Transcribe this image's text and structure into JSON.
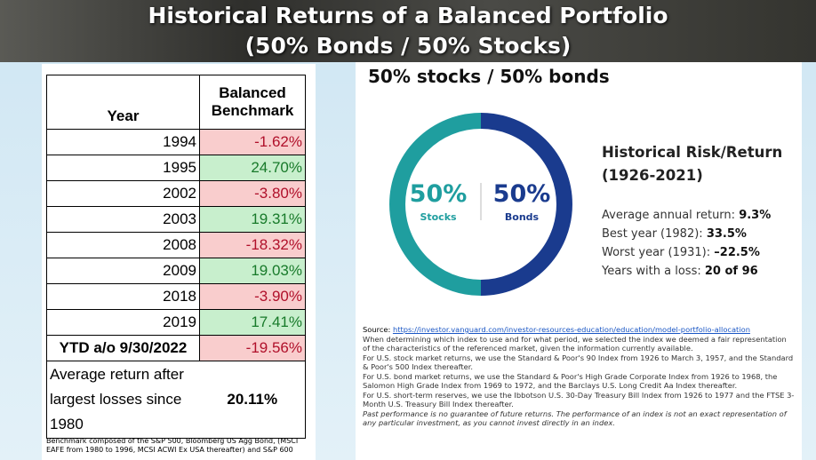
{
  "header": {
    "title_line1": "Historical Returns of a Balanced Portfolio",
    "title_line2": "(50% Bonds / 50% Stocks)"
  },
  "table": {
    "header": [
      "Year",
      "Balanced Benchmark"
    ],
    "rows": [
      [
        "1994",
        "-1.62%"
      ],
      [
        "1995",
        "24.70%"
      ],
      [
        "2002",
        "-3.80%"
      ],
      [
        "2003",
        "19.31%"
      ],
      [
        "2008",
        "-18.32%"
      ],
      [
        "2009",
        "19.03%"
      ],
      [
        "2018",
        "-3.90%"
      ],
      [
        "2019",
        "17.41%"
      ],
      [
        "YTD a/o 9/30/2022",
        "-19.56%"
      ]
    ],
    "summary": [
      "Average return after largest losses since 1980",
      "20.11%"
    ],
    "footnote": "Benchmark composed of  the S&P 500, Bloomberg US Agg Bond, (MSCI EAFE from 1980 to 1996, MCSI ACWI Ex USA thereafter) and S&P 600"
  },
  "allocation": {
    "title": "50% stocks / 50% bonds",
    "segments": [
      {
        "name": "Stocks",
        "value": 50,
        "label": "50%",
        "color": "#1f9e9f"
      },
      {
        "name": "Bonds",
        "value": 50,
        "label": "50%",
        "color": "#1a3b8e"
      }
    ]
  },
  "risk_return": {
    "title": "Historical Risk/Return",
    "period": "(1926-2021)",
    "items": [
      [
        "Average annual return:",
        "9.3%"
      ],
      [
        "Best year (1982):",
        "33.5%"
      ],
      [
        "Worst year (1931):",
        "–22.5%"
      ],
      [
        "Years with a loss:",
        "20 of 96"
      ]
    ]
  },
  "source": {
    "label": "Source:",
    "url": "https://investor.vanguard.com/investor-resources-education/education/model-portfolio-allocation",
    "paragraphs": [
      "When determining which index to use and for what period, we selected the index we deemed a fair representation of the characteristics of the referenced market, given the information currently available.",
      "For U.S. stock market returns, we use the Standard & Poor's 90 Index from 1926 to March 3, 1957, and the Standard & Poor's 500 Index thereafter.",
      "For U.S. bond market returns, we use the Standard & Poor's High Grade Corporate Index from 1926 to 1968, the Salomon High Grade Index from 1969 to 1972, and the Barclays U.S. Long Credit Aa Index thereafter.",
      "For U.S. short-term reserves, we use the Ibbotson U.S. 30-Day Treasury Bill Index from 1926 to 1977 and the FTSE 3-Month U.S. Treasury Bill Index thereafter."
    ],
    "disclaimer": "Past performance is no guarantee of future returns. The performance of an index is not an exact representation of any particular investment, as you cannot invest directly in an index."
  }
}
